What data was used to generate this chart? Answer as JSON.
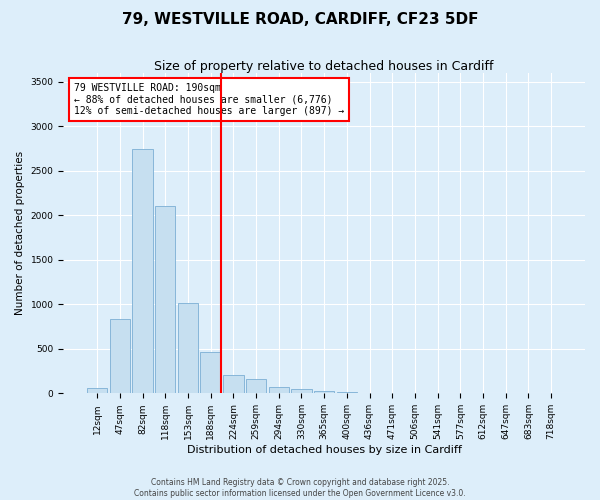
{
  "title1": "79, WESTVILLE ROAD, CARDIFF, CF23 5DF",
  "title2": "Size of property relative to detached houses in Cardiff",
  "xlabel": "Distribution of detached houses by size in Cardiff",
  "ylabel": "Number of detached properties",
  "categories": [
    "12sqm",
    "47sqm",
    "82sqm",
    "118sqm",
    "153sqm",
    "188sqm",
    "224sqm",
    "259sqm",
    "294sqm",
    "330sqm",
    "365sqm",
    "400sqm",
    "436sqm",
    "471sqm",
    "506sqm",
    "541sqm",
    "577sqm",
    "612sqm",
    "647sqm",
    "683sqm",
    "718sqm"
  ],
  "values": [
    55,
    840,
    2750,
    2100,
    1010,
    460,
    210,
    165,
    75,
    45,
    30,
    12,
    5,
    2,
    1,
    0,
    0,
    0,
    0,
    0,
    0
  ],
  "bar_color": "#c6dff0",
  "bar_edge_color": "#7bafd4",
  "vline_color": "red",
  "vline_index": 5,
  "annotation_text": "79 WESTVILLE ROAD: 190sqm\n← 88% of detached houses are smaller (6,776)\n12% of semi-detached houses are larger (897) →",
  "annotation_box_color": "white",
  "annotation_box_edge": "red",
  "ylim": [
    0,
    3600
  ],
  "yticks": [
    0,
    500,
    1000,
    1500,
    2000,
    2500,
    3000,
    3500
  ],
  "bg_color": "#ddeefa",
  "plot_bg_color": "#ddeefa",
  "footer1": "Contains HM Land Registry data © Crown copyright and database right 2025.",
  "footer2": "Contains public sector information licensed under the Open Government Licence v3.0.",
  "title1_fontsize": 11,
  "title2_fontsize": 9,
  "tick_fontsize": 6.5,
  "xlabel_fontsize": 8,
  "ylabel_fontsize": 7.5,
  "annotation_fontsize": 7,
  "footer_fontsize": 5.5
}
